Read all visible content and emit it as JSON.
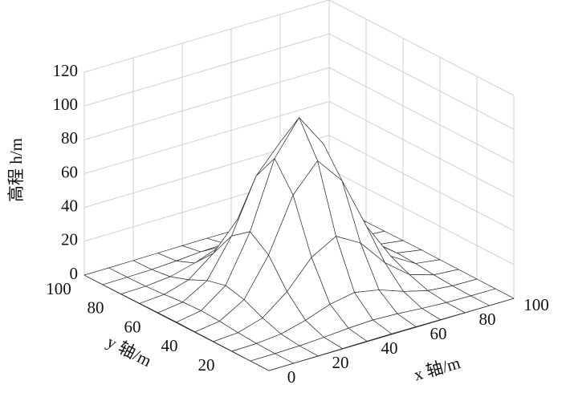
{
  "chart_data": {
    "type": "surface",
    "xlabel": "x 轴/m",
    "ylabel": "y 轴/m",
    "zlabel": "高程 h/m",
    "x": [
      0,
      10,
      20,
      30,
      40,
      50,
      60,
      70,
      80,
      90,
      100
    ],
    "y": [
      0,
      10,
      20,
      30,
      40,
      50,
      60,
      70,
      80,
      90,
      100
    ],
    "z": [
      [
        0,
        0,
        0.1,
        0.2,
        0.3,
        0.4,
        0.3,
        0.2,
        0.1,
        0,
        0
      ],
      [
        0,
        0.1,
        0.4,
        1.2,
        2.3,
        2.9,
        2.3,
        1.2,
        0.4,
        0.1,
        0
      ],
      [
        0.1,
        0.4,
        1.8,
        5.6,
        10.8,
        13.5,
        10.8,
        5.6,
        1.8,
        0.4,
        0.1
      ],
      [
        0.2,
        1.2,
        5.6,
        16.9,
        32.9,
        41.1,
        32.9,
        16.9,
        5.6,
        1.2,
        0.2
      ],
      [
        0.3,
        2.3,
        10.8,
        32.9,
        64.1,
        80.1,
        64.1,
        32.9,
        10.8,
        2.3,
        0.3
      ],
      [
        0.4,
        2.9,
        13.5,
        41.1,
        80.1,
        100,
        80.1,
        41.1,
        13.5,
        2.9,
        0.4
      ],
      [
        0.3,
        2.3,
        10.8,
        32.9,
        64.1,
        80.1,
        64.1,
        32.9,
        10.8,
        2.3,
        0.3
      ],
      [
        0.2,
        1.2,
        5.6,
        16.9,
        32.9,
        41.1,
        32.9,
        16.9,
        5.6,
        1.2,
        0.2
      ],
      [
        0.1,
        0.4,
        1.8,
        5.6,
        10.8,
        13.5,
        10.8,
        5.6,
        1.8,
        0.4,
        0.1
      ],
      [
        0,
        0.1,
        0.4,
        1.2,
        2.3,
        2.9,
        2.3,
        1.2,
        0.4,
        0.1,
        0
      ],
      [
        0,
        0,
        0.1,
        0.2,
        0.3,
        0.4,
        0.3,
        0.2,
        0.1,
        0,
        0
      ]
    ],
    "xlim": [
      0,
      100
    ],
    "ylim": [
      0,
      100
    ],
    "zlim": [
      0,
      120
    ],
    "xticks": [
      0,
      20,
      40,
      60,
      80,
      100
    ],
    "yticks": [
      20,
      40,
      60,
      80,
      100
    ],
    "zticks": [
      0,
      20,
      40,
      60,
      80,
      100,
      120
    ],
    "grid": true,
    "color": "#ffffff",
    "edge_color": "#333333"
  }
}
